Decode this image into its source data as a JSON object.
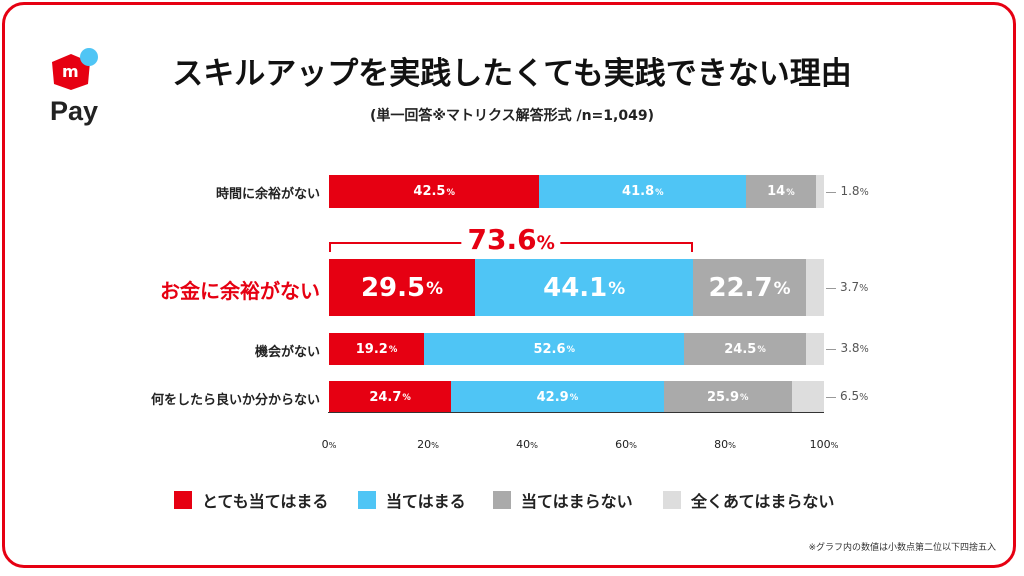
{
  "logo": {
    "text": "Pay",
    "mark": "m",
    "colors": {
      "cube": "#e60012",
      "dot": "#4fc5f5"
    }
  },
  "header": {
    "title": "スキルアップを実践したくても実践できない理由",
    "subtitle": "(単一回答※マトリクス解答形式 /n=1,049)"
  },
  "chart_data": {
    "type": "bar",
    "orientation": "horizontal",
    "stacked": true,
    "title": "スキルアップを実践したくても実践できない理由",
    "categories": [
      "時間に余裕がない",
      "お金に余裕がない",
      "機会がない",
      "何をしたら良いか分からない"
    ],
    "highlight_category": "お金に余裕がない",
    "series": [
      {
        "name": "とても当てはまる",
        "color": "#e60012",
        "values": [
          42.5,
          29.5,
          19.2,
          24.7
        ]
      },
      {
        "name": "当てはまる",
        "color": "#4fc5f5",
        "values": [
          41.8,
          44.1,
          52.6,
          42.9
        ]
      },
      {
        "name": "当てはまらない",
        "color": "#aaaaaa",
        "values": [
          14,
          22.7,
          24.5,
          25.9
        ]
      },
      {
        "name": "全くあてはまらない",
        "color": "#dddddd",
        "values": [
          1.8,
          3.7,
          3.8,
          6.5
        ]
      }
    ],
    "value_labels": [
      [
        "42.5",
        "41.8",
        "14",
        "1.8"
      ],
      [
        "29.5",
        "44.1",
        "22.7",
        "3.7"
      ],
      [
        "19.2",
        "52.6",
        "24.5",
        "3.8"
      ],
      [
        "24.7",
        "42.9",
        "25.9",
        "6.5"
      ]
    ],
    "unit": "%",
    "xlim": [
      0,
      100
    ],
    "xticks": [
      "0",
      "20",
      "40",
      "60",
      "80",
      "100"
    ],
    "annotation": {
      "text": "73.6",
      "unit": "%",
      "category": "お金に余裕がない",
      "spans_series": [
        "とても当てはまる",
        "当てはまる"
      ]
    },
    "legend": {
      "position": "bottom"
    }
  },
  "footnote": "※グラフ内の数値は小数点第二位以下四捨五入"
}
